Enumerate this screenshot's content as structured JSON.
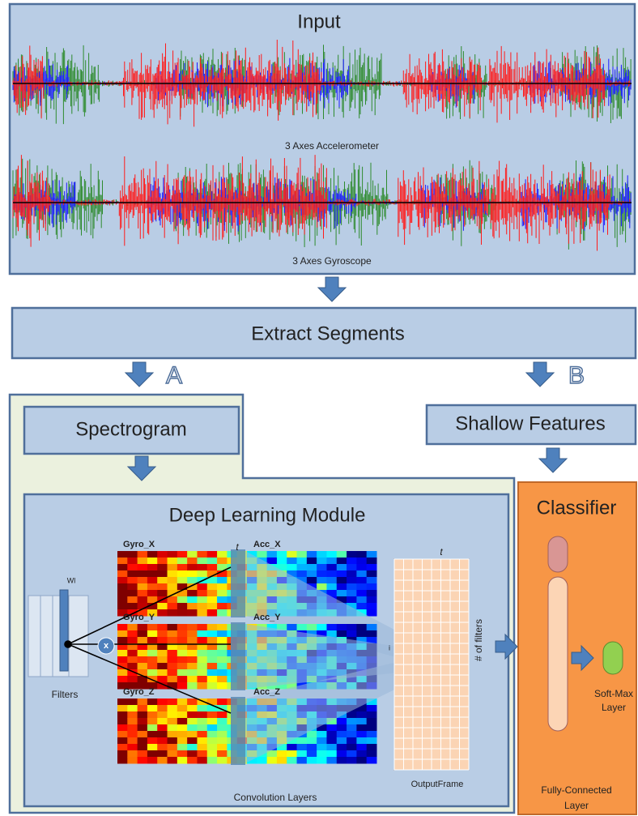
{
  "input": {
    "title": "Input",
    "accelerometer_label": "3 Axes Accelerometer",
    "gyroscope_label": "3 Axes Gyroscope"
  },
  "extract_segments": "Extract Segments",
  "branch_a": "A",
  "branch_b": "B",
  "spectrogram": "Spectrogram",
  "shallow_features": "Shallow Features",
  "deep_learning": {
    "title": "Deep Learning Module",
    "heatmaps": [
      {
        "gyro": "Gyro_X",
        "acc": "Acc_X"
      },
      {
        "gyro": "Gyro_Y",
        "acc": "Acc_Y"
      },
      {
        "gyro": "Gyro_Z",
        "acc": "Acc_Z"
      }
    ],
    "filter_weight": "Wl",
    "multiply": "x",
    "filters": "Filters",
    "time_label": "t",
    "index_label": "i",
    "filters_count": "# of filters",
    "output_frame": "OutputFrame",
    "convolution_layers": "Convolution Layers"
  },
  "classifier": {
    "title": "Classifier",
    "softmax": [
      "Soft-Max",
      "Layer"
    ],
    "fully_connected": [
      "Fully-Connected",
      "Layer"
    ]
  }
}
